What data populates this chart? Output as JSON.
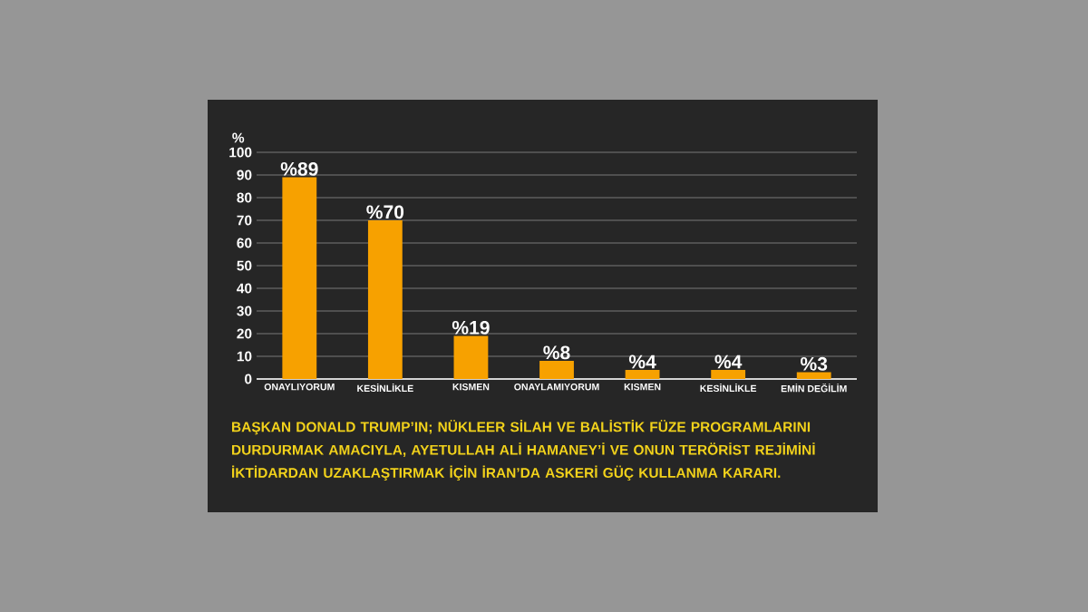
{
  "chart_data": {
    "type": "bar",
    "ylabel": "%",
    "categories": [
      "ONAYLIYORUM",
      "KESİNLİKLE",
      "KISMEN",
      "ONAYLAMIYORUM",
      "KISMEN",
      "KESİNLİKLE",
      "EMİN DEĞİLİM"
    ],
    "values": [
      89,
      70,
      19,
      8,
      4,
      4,
      3
    ],
    "value_labels": [
      "%89",
      "%70",
      "%19",
      "%8",
      "%4",
      "%4",
      "%3"
    ],
    "color": "#f7a100",
    "ylim": [
      0,
      100
    ],
    "yticks": [
      0,
      10,
      20,
      30,
      40,
      50,
      60,
      70,
      80,
      90,
      100
    ],
    "grid": "y",
    "annotations": [
      "BAŞKAN DONALD TRUMP’IN; NÜKLEER SİLAH VE BALİSTİK FÜZE PROGRAMLARINI DURDURMAK AMACIYLA, AYETULLAH ALİ HAMANEY’İ VE ONUN TERÖRİST REJİMİNİ İKTİDARDAN UZAKLAŞTIRMAK İÇİN İRAN’DA ASKERİ GÜÇ KULLANMA KARARI."
    ]
  }
}
